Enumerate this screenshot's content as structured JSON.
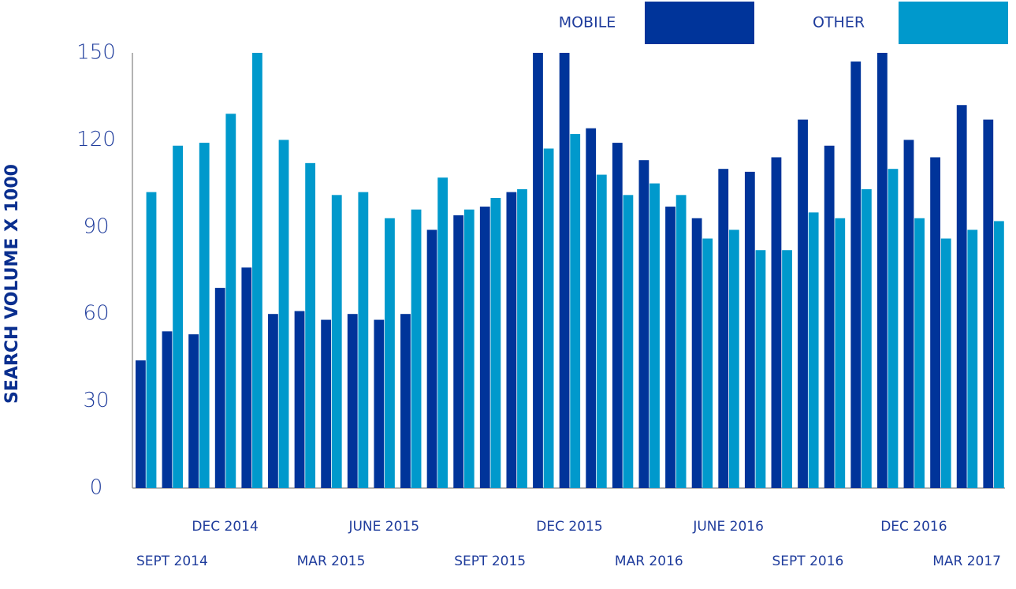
{
  "chart_data": {
    "type": "bar",
    "y_label": "SEARCH VOLUME X 1000",
    "categories": [
      null,
      "SEPT 2014",
      null,
      "DEC 2014",
      null,
      null,
      null,
      "MAR 2015",
      null,
      "JUNE 2015",
      null,
      null,
      null,
      "SEPT 2015",
      null,
      null,
      "DEC 2015",
      null,
      null,
      "MAR 2016",
      null,
      null,
      "JUNE 2016",
      null,
      null,
      "SEPT 2016",
      null,
      null,
      null,
      "DEC 2016",
      null,
      "MAR 2017",
      null
    ],
    "series": [
      {
        "name": "MOBILE",
        "color": "#00349a",
        "values": [
          44,
          54,
          53,
          69,
          76,
          60,
          61,
          58,
          60,
          58,
          60,
          89,
          94,
          97,
          102,
          150,
          150,
          124,
          119,
          113,
          97,
          93,
          110,
          109,
          114,
          127,
          118,
          147,
          150,
          120,
          114,
          132,
          127
        ]
      },
      {
        "name": "OTHER",
        "color": "#0099cc",
        "values": [
          102,
          118,
          119,
          129,
          150,
          120,
          112,
          101,
          102,
          93,
          96,
          107,
          96,
          100,
          103,
          117,
          122,
          108,
          101,
          105,
          101,
          86,
          89,
          82,
          82,
          95,
          93,
          103,
          110,
          93,
          86,
          89,
          92
        ]
      }
    ],
    "ylim": [
      0,
      150
    ],
    "yticks": [
      0,
      30,
      60,
      90,
      120,
      150
    ],
    "grid": false
  }
}
